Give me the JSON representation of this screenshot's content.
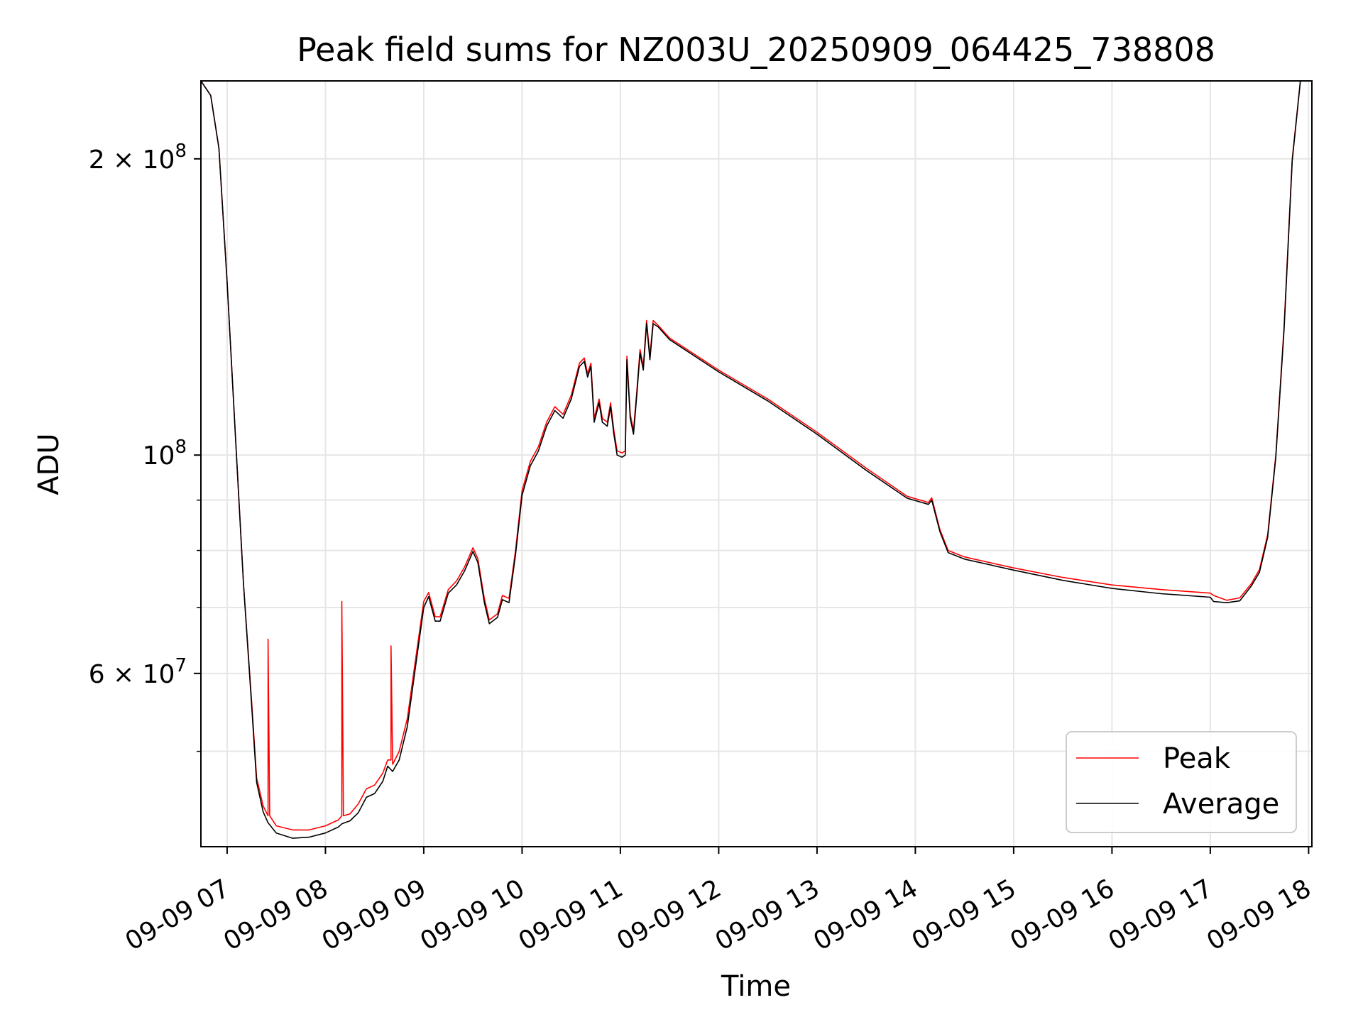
{
  "chart_data": {
    "type": "line",
    "title": "Peak field sums for NZ003U_20250909_064425_738808",
    "xlabel": "Time",
    "ylabel": "ADU",
    "x_scale": "time",
    "y_scale": "log",
    "xlim": [
      "09-09 06:44",
      "09-09 18:02"
    ],
    "ylim": [
      40000000,
      240000000
    ],
    "grid": true,
    "legend_position": "lower right",
    "x_ticks": [
      {
        "value": "09-09 07:00",
        "label": "09-09 07"
      },
      {
        "value": "09-09 08:00",
        "label": "09-09 08"
      },
      {
        "value": "09-09 09:00",
        "label": "09-09 09"
      },
      {
        "value": "09-09 10:00",
        "label": "09-09 10"
      },
      {
        "value": "09-09 11:00",
        "label": "09-09 11"
      },
      {
        "value": "09-09 12:00",
        "label": "09-09 12"
      },
      {
        "value": "09-09 13:00",
        "label": "09-09 13"
      },
      {
        "value": "09-09 14:00",
        "label": "09-09 14"
      },
      {
        "value": "09-09 15:00",
        "label": "09-09 15"
      },
      {
        "value": "09-09 16:00",
        "label": "09-09 16"
      },
      {
        "value": "09-09 17:00",
        "label": "09-09 17"
      },
      {
        "value": "09-09 18:00",
        "label": "09-09 18"
      }
    ],
    "y_ticks": [
      {
        "value": 200000000,
        "mantissa": "2",
        "times": "×",
        "base": "10",
        "exp": "8"
      },
      {
        "value": 100000000,
        "mantissa": "",
        "times": "",
        "base": "10",
        "exp": "8"
      },
      {
        "value": 60000000,
        "mantissa": "6",
        "times": "×",
        "base": "10",
        "exp": "7"
      }
    ],
    "y_minor_ticks": [
      50000000,
      70000000,
      80000000,
      90000000
    ],
    "series": [
      {
        "name": "Peak",
        "color": "#ff0000",
        "points": [
          [
            "09-09 06:44",
            240000000
          ],
          [
            "09-09 06:50",
            232000000
          ],
          [
            "09-09 06:55",
            205000000
          ],
          [
            "09-09 07:00",
            150000000
          ],
          [
            "09-09 07:05",
            105000000
          ],
          [
            "09-09 07:10",
            74000000
          ],
          [
            "09-09 07:15",
            56000000
          ],
          [
            "09-09 07:18",
            47000000
          ],
          [
            "09-09 07:22",
            44000000
          ],
          [
            "09-09 07:25",
            43000000
          ],
          [
            "09-09 07:25",
            65000000
          ],
          [
            "09-09 07:26",
            43000000
          ],
          [
            "09-09 07:30",
            42000000
          ],
          [
            "09-09 07:40",
            41600000
          ],
          [
            "09-09 07:50",
            41600000
          ],
          [
            "09-09 08:00",
            42000000
          ],
          [
            "09-09 08:08",
            42600000
          ],
          [
            "09-09 08:10",
            43000000
          ],
          [
            "09-09 08:10",
            71000000
          ],
          [
            "09-09 08:11",
            43000000
          ],
          [
            "09-09 08:15",
            43200000
          ],
          [
            "09-09 08:20",
            44200000
          ],
          [
            "09-09 08:25",
            45800000
          ],
          [
            "09-09 08:30",
            46200000
          ],
          [
            "09-09 08:35",
            47500000
          ],
          [
            "09-09 08:38",
            49000000
          ],
          [
            "09-09 08:40",
            49000000
          ],
          [
            "09-09 08:40",
            64000000
          ],
          [
            "09-09 08:41",
            48500000
          ],
          [
            "09-09 08:45",
            50000000
          ],
          [
            "09-09 08:50",
            54000000
          ],
          [
            "09-09 08:55",
            62000000
          ],
          [
            "09-09 09:00",
            71000000
          ],
          [
            "09-09 09:03",
            72500000
          ],
          [
            "09-09 09:07",
            68500000
          ],
          [
            "09-09 09:10",
            68500000
          ],
          [
            "09-09 09:15",
            73000000
          ],
          [
            "09-09 09:20",
            74500000
          ],
          [
            "09-09 09:25",
            77000000
          ],
          [
            "09-09 09:30",
            80500000
          ],
          [
            "09-09 09:33",
            78500000
          ],
          [
            "09-09 09:37",
            71500000
          ],
          [
            "09-09 09:40",
            68000000
          ],
          [
            "09-09 09:45",
            69000000
          ],
          [
            "09-09 09:48",
            72000000
          ],
          [
            "09-09 09:52",
            71500000
          ],
          [
            "09-09 09:56",
            80000000
          ],
          [
            "09-09 10:00",
            92000000
          ],
          [
            "09-09 10:05",
            98500000
          ],
          [
            "09-09 10:10",
            102000000
          ],
          [
            "09-09 10:15",
            108000000
          ],
          [
            "09-09 10:20",
            112000000
          ],
          [
            "09-09 10:25",
            110000000
          ],
          [
            "09-09 10:30",
            115000000
          ],
          [
            "09-09 10:35",
            124000000
          ],
          [
            "09-09 10:38",
            125500000
          ],
          [
            "09-09 10:40",
            121000000
          ],
          [
            "09-09 10:42",
            124000000
          ],
          [
            "09-09 10:44",
            109000000
          ],
          [
            "09-09 10:47",
            114000000
          ],
          [
            "09-09 10:49",
            109000000
          ],
          [
            "09-09 10:52",
            108000000
          ],
          [
            "09-09 10:54",
            113000000
          ],
          [
            "09-09 10:56",
            106000000
          ],
          [
            "09-09 10:58",
            101000000
          ],
          [
            "09-09 11:01",
            100500000
          ],
          [
            "09-09 11:03",
            101000000
          ],
          [
            "09-09 11:04",
            126000000
          ],
          [
            "09-09 11:06",
            110000000
          ],
          [
            "09-09 11:08",
            106000000
          ],
          [
            "09-09 11:10",
            116000000
          ],
          [
            "09-09 11:12",
            128000000
          ],
          [
            "09-09 11:14",
            123000000
          ],
          [
            "09-09 11:16",
            137000000
          ],
          [
            "09-09 11:18",
            126000000
          ],
          [
            "09-09 11:20",
            137000000
          ],
          [
            "09-09 11:23",
            135500000
          ],
          [
            "09-09 11:30",
            131500000
          ],
          [
            "09-09 12:00",
            122000000
          ],
          [
            "09-09 12:30",
            114000000
          ],
          [
            "09-09 13:00",
            105500000
          ],
          [
            "09-09 13:30",
            97000000
          ],
          [
            "09-09 13:55",
            90800000
          ],
          [
            "09-09 14:08",
            89500000
          ],
          [
            "09-09 14:10",
            90500000
          ],
          [
            "09-09 14:15",
            84000000
          ],
          [
            "09-09 14:20",
            80000000
          ],
          [
            "09-09 14:30",
            78800000
          ],
          [
            "09-09 15:00",
            76800000
          ],
          [
            "09-09 15:30",
            75100000
          ],
          [
            "09-09 16:00",
            73800000
          ],
          [
            "09-09 16:30",
            73000000
          ],
          [
            "09-09 17:00",
            72400000
          ],
          [
            "09-09 17:02",
            72000000
          ],
          [
            "09-09 17:10",
            71200000
          ],
          [
            "09-09 17:18",
            71600000
          ],
          [
            "09-09 17:25",
            74000000
          ],
          [
            "09-09 17:30",
            76500000
          ],
          [
            "09-09 17:35",
            83000000
          ],
          [
            "09-09 17:40",
            100000000
          ],
          [
            "09-09 17:45",
            135000000
          ],
          [
            "09-09 17:50",
            200000000
          ],
          [
            "09-09 17:55",
            240000000
          ],
          [
            "09-09 18:02",
            240000000
          ]
        ]
      },
      {
        "name": "Average",
        "color": "#000000",
        "points": [
          [
            "09-09 06:44",
            240000000
          ],
          [
            "09-09 06:50",
            232000000
          ],
          [
            "09-09 06:55",
            205000000
          ],
          [
            "09-09 07:00",
            150000000
          ],
          [
            "09-09 07:05",
            105000000
          ],
          [
            "09-09 07:10",
            74000000
          ],
          [
            "09-09 07:15",
            55500000
          ],
          [
            "09-09 07:18",
            46500000
          ],
          [
            "09-09 07:22",
            43400000
          ],
          [
            "09-09 07:25",
            42300000
          ],
          [
            "09-09 07:30",
            41300000
          ],
          [
            "09-09 07:40",
            40800000
          ],
          [
            "09-09 07:50",
            40900000
          ],
          [
            "09-09 08:00",
            41300000
          ],
          [
            "09-09 08:08",
            41900000
          ],
          [
            "09-09 08:10",
            42200000
          ],
          [
            "09-09 08:15",
            42500000
          ],
          [
            "09-09 08:20",
            43300000
          ],
          [
            "09-09 08:25",
            44900000
          ],
          [
            "09-09 08:30",
            45300000
          ],
          [
            "09-09 08:35",
            46600000
          ],
          [
            "09-09 08:38",
            48300000
          ],
          [
            "09-09 08:41",
            47700000
          ],
          [
            "09-09 08:45",
            49000000
          ],
          [
            "09-09 08:50",
            53000000
          ],
          [
            "09-09 08:55",
            61000000
          ],
          [
            "09-09 09:00",
            70000000
          ],
          [
            "09-09 09:03",
            71800000
          ],
          [
            "09-09 09:07",
            67800000
          ],
          [
            "09-09 09:10",
            67800000
          ],
          [
            "09-09 09:15",
            72400000
          ],
          [
            "09-09 09:20",
            73800000
          ],
          [
            "09-09 09:25",
            76300000
          ],
          [
            "09-09 09:30",
            79800000
          ],
          [
            "09-09 09:33",
            77800000
          ],
          [
            "09-09 09:37",
            70800000
          ],
          [
            "09-09 09:40",
            67400000
          ],
          [
            "09-09 09:45",
            68400000
          ],
          [
            "09-09 09:48",
            71300000
          ],
          [
            "09-09 09:52",
            70800000
          ],
          [
            "09-09 09:56",
            79200000
          ],
          [
            "09-09 10:00",
            91000000
          ],
          [
            "09-09 10:05",
            97500000
          ],
          [
            "09-09 10:10",
            101000000
          ],
          [
            "09-09 10:15",
            107000000
          ],
          [
            "09-09 10:20",
            111000000
          ],
          [
            "09-09 10:25",
            109000000
          ],
          [
            "09-09 10:30",
            114000000
          ],
          [
            "09-09 10:35",
            123000000
          ],
          [
            "09-09 10:38",
            124500000
          ],
          [
            "09-09 10:40",
            120000000
          ],
          [
            "09-09 10:42",
            123000000
          ],
          [
            "09-09 10:44",
            108000000
          ],
          [
            "09-09 10:47",
            113000000
          ],
          [
            "09-09 10:49",
            108000000
          ],
          [
            "09-09 10:52",
            107000000
          ],
          [
            "09-09 10:54",
            112000000
          ],
          [
            "09-09 10:56",
            105000000
          ],
          [
            "09-09 10:58",
            100000000
          ],
          [
            "09-09 11:01",
            99500000
          ],
          [
            "09-09 11:03",
            100000000
          ],
          [
            "09-09 11:04",
            125000000
          ],
          [
            "09-09 11:06",
            109000000
          ],
          [
            "09-09 11:08",
            105000000
          ],
          [
            "09-09 11:10",
            115000000
          ],
          [
            "09-09 11:12",
            127000000
          ],
          [
            "09-09 11:14",
            122000000
          ],
          [
            "09-09 11:16",
            136000000
          ],
          [
            "09-09 11:18",
            125000000
          ],
          [
            "09-09 11:20",
            136000000
          ],
          [
            "09-09 11:23",
            135000000
          ],
          [
            "09-09 11:30",
            131000000
          ],
          [
            "09-09 12:00",
            121500000
          ],
          [
            "09-09 12:30",
            113500000
          ],
          [
            "09-09 13:00",
            105000000
          ],
          [
            "09-09 13:30",
            96500000
          ],
          [
            "09-09 13:55",
            90400000
          ],
          [
            "09-09 14:08",
            89100000
          ],
          [
            "09-09 14:10",
            90000000
          ],
          [
            "09-09 14:15",
            83600000
          ],
          [
            "09-09 14:20",
            79600000
          ],
          [
            "09-09 14:30",
            78400000
          ],
          [
            "09-09 15:00",
            76400000
          ],
          [
            "09-09 15:30",
            74600000
          ],
          [
            "09-09 16:00",
            73200000
          ],
          [
            "09-09 16:30",
            72300000
          ],
          [
            "09-09 17:00",
            71700000
          ],
          [
            "09-09 17:02",
            71000000
          ],
          [
            "09-09 17:10",
            70800000
          ],
          [
            "09-09 17:18",
            71100000
          ],
          [
            "09-09 17:25",
            73600000
          ],
          [
            "09-09 17:30",
            76000000
          ],
          [
            "09-09 17:35",
            82500000
          ],
          [
            "09-09 17:40",
            99500000
          ],
          [
            "09-09 17:45",
            134000000
          ],
          [
            "09-09 17:50",
            199000000
          ],
          [
            "09-09 17:55",
            240000000
          ],
          [
            "09-09 18:02",
            240000000
          ]
        ]
      }
    ]
  }
}
